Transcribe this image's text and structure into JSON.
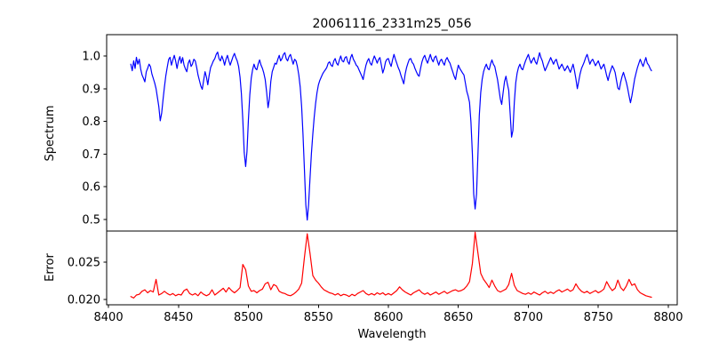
{
  "figure": {
    "title": "20061116_2331m25_056",
    "background": "#ffffff",
    "text_color": "#000000"
  },
  "x_axis": {
    "label": "Wavelength",
    "ticks": [
      {
        "v": 8400,
        "label": "8400"
      },
      {
        "v": 8450,
        "label": "8450"
      },
      {
        "v": 8500,
        "label": "8500"
      },
      {
        "v": 8550,
        "label": "8550"
      },
      {
        "v": 8600,
        "label": "8600"
      },
      {
        "v": 8650,
        "label": "8650"
      },
      {
        "v": 8700,
        "label": "8700"
      },
      {
        "v": 8750,
        "label": "8750"
      },
      {
        "v": 8800,
        "label": "8800"
      }
    ]
  },
  "chart_data": [
    {
      "type": "line",
      "name": "spectrum",
      "title": "20061116_2331m25_056",
      "ylabel": "Spectrum",
      "color": "#0000ff",
      "grid": false,
      "legend": "none",
      "xlim": [
        8398.7,
        8806.4
      ],
      "ylim": [
        0.4647,
        1.0652
      ],
      "yticks": [
        {
          "v": 0.5,
          "label": "0.5"
        },
        {
          "v": 0.6,
          "label": "0.6"
        },
        {
          "v": 0.7,
          "label": "0.7"
        },
        {
          "v": 0.8,
          "label": "0.8"
        },
        {
          "v": 0.9,
          "label": "0.9"
        },
        {
          "v": 1.0,
          "label": "1.0"
        }
      ],
      "x_start": 8416,
      "x_step": 1,
      "values": [
        0.975,
        0.955,
        0.985,
        0.962,
        0.996,
        0.975,
        0.99,
        0.96,
        0.942,
        0.932,
        0.921,
        0.952,
        0.962,
        0.975,
        0.968,
        0.945,
        0.932,
        0.918,
        0.9,
        0.872,
        0.845,
        0.802,
        0.825,
        0.868,
        0.905,
        0.94,
        0.966,
        0.99,
        0.996,
        0.972,
        0.988,
        1.002,
        0.985,
        0.962,
        0.985,
        0.998,
        0.978,
        0.995,
        0.972,
        0.96,
        0.952,
        0.978,
        0.988,
        0.968,
        0.975,
        0.99,
        0.985,
        0.965,
        0.942,
        0.925,
        0.908,
        0.898,
        0.925,
        0.952,
        0.935,
        0.912,
        0.942,
        0.965,
        0.975,
        0.985,
        0.992,
        1.005,
        1.012,
        0.992,
        0.985,
        1.0,
        0.988,
        0.972,
        0.99,
        1.002,
        0.985,
        0.972,
        0.985,
        0.998,
        1.008,
        0.995,
        0.985,
        0.968,
        0.935,
        0.885,
        0.805,
        0.705,
        0.662,
        0.708,
        0.805,
        0.882,
        0.932,
        0.958,
        0.975,
        0.962,
        0.958,
        0.975,
        0.988,
        0.972,
        0.962,
        0.948,
        0.928,
        0.89,
        0.842,
        0.868,
        0.922,
        0.952,
        0.965,
        0.978,
        0.975,
        0.99,
        1.002,
        0.985,
        0.992,
        1.005,
        1.01,
        0.992,
        0.985,
        0.998,
        1.005,
        0.99,
        0.975,
        0.99,
        0.985,
        0.968,
        0.942,
        0.905,
        0.845,
        0.762,
        0.655,
        0.545,
        0.498,
        0.545,
        0.625,
        0.702,
        0.762,
        0.812,
        0.855,
        0.888,
        0.912,
        0.925,
        0.935,
        0.945,
        0.952,
        0.958,
        0.965,
        0.978,
        0.982,
        0.972,
        0.968,
        0.985,
        0.992,
        0.978,
        0.972,
        0.988,
        1.0,
        0.985,
        0.982,
        0.995,
        0.998,
        0.982,
        0.975,
        0.995,
        1.005,
        0.99,
        0.982,
        0.972,
        0.968,
        0.958,
        0.948,
        0.938,
        0.928,
        0.952,
        0.972,
        0.985,
        0.992,
        0.978,
        0.972,
        0.988,
        1.0,
        0.99,
        0.978,
        0.99,
        0.995,
        0.972,
        0.948,
        0.962,
        0.982,
        0.99,
        0.992,
        0.978,
        0.968,
        0.988,
        1.005,
        0.99,
        0.978,
        0.965,
        0.955,
        0.94,
        0.928,
        0.915,
        0.945,
        0.965,
        0.978,
        0.99,
        0.992,
        0.98,
        0.975,
        0.962,
        0.952,
        0.942,
        0.938,
        0.962,
        0.982,
        0.995,
        1.002,
        0.988,
        0.978,
        0.992,
        1.005,
        0.99,
        0.982,
        0.995,
        1.0,
        0.985,
        0.972,
        0.985,
        0.99,
        0.98,
        0.972,
        0.988,
        0.995,
        0.985,
        0.978,
        0.965,
        0.952,
        0.938,
        0.928,
        0.952,
        0.972,
        0.962,
        0.955,
        0.948,
        0.942,
        0.918,
        0.892,
        0.878,
        0.858,
        0.798,
        0.702,
        0.578,
        0.532,
        0.578,
        0.702,
        0.818,
        0.888,
        0.928,
        0.952,
        0.965,
        0.975,
        0.962,
        0.958,
        0.975,
        0.988,
        0.975,
        0.968,
        0.948,
        0.928,
        0.898,
        0.868,
        0.852,
        0.888,
        0.922,
        0.938,
        0.915,
        0.895,
        0.825,
        0.752,
        0.772,
        0.858,
        0.918,
        0.948,
        0.965,
        0.975,
        0.962,
        0.958,
        0.972,
        0.985,
        0.995,
        1.005,
        0.99,
        0.978,
        0.988,
        0.995,
        0.982,
        0.975,
        0.992,
        1.01,
        0.995,
        0.985,
        0.968,
        0.955,
        0.965,
        0.975,
        0.985,
        0.995,
        0.985,
        0.975,
        0.985,
        0.99,
        0.975,
        0.96,
        0.968,
        0.975,
        0.965,
        0.955,
        0.962,
        0.97,
        0.96,
        0.95,
        0.962,
        0.975,
        0.955,
        0.93,
        0.9,
        0.922,
        0.945,
        0.962,
        0.972,
        0.982,
        0.995,
        1.005,
        0.99,
        0.975,
        0.985,
        0.99,
        0.98,
        0.97,
        0.978,
        0.985,
        0.972,
        0.96,
        0.968,
        0.975,
        0.958,
        0.94,
        0.925,
        0.945,
        0.958,
        0.97,
        0.962,
        0.95,
        0.925,
        0.902,
        0.897,
        0.92,
        0.938,
        0.95,
        0.935,
        0.92,
        0.9,
        0.878,
        0.857,
        0.878,
        0.905,
        0.93,
        0.948,
        0.965,
        0.978,
        0.99,
        0.978,
        0.968,
        0.982,
        0.995,
        0.978,
        0.972,
        0.962,
        0.955
      ]
    },
    {
      "type": "line",
      "name": "error",
      "ylabel": "Error",
      "color": "#ff0000",
      "grid": false,
      "legend": "none",
      "xlim": [
        8398.7,
        8806.4
      ],
      "ylim": [
        0.01929,
        0.02917
      ],
      "yticks": [
        {
          "v": 0.02,
          "label": "0.020"
        },
        {
          "v": 0.025,
          "label": "0.025"
        }
      ],
      "x_start": 8416,
      "x_step": 2,
      "values": [
        0.0204,
        0.0202,
        0.0206,
        0.0207,
        0.0211,
        0.0213,
        0.0209,
        0.0212,
        0.021,
        0.0227,
        0.0206,
        0.0208,
        0.0211,
        0.0208,
        0.0206,
        0.0208,
        0.0205,
        0.0207,
        0.0206,
        0.0212,
        0.0214,
        0.0208,
        0.0206,
        0.0208,
        0.0205,
        0.021,
        0.0207,
        0.0205,
        0.0207,
        0.0213,
        0.0206,
        0.0209,
        0.0212,
        0.0215,
        0.021,
        0.0216,
        0.0212,
        0.0209,
        0.0212,
        0.0216,
        0.0247,
        0.024,
        0.0218,
        0.0211,
        0.0212,
        0.0209,
        0.0212,
        0.0214,
        0.0221,
        0.0223,
        0.0213,
        0.022,
        0.0218,
        0.0211,
        0.0209,
        0.0208,
        0.0206,
        0.0205,
        0.0207,
        0.021,
        0.0214,
        0.0222,
        0.0256,
        0.0288,
        0.0262,
        0.0232,
        0.0226,
        0.0222,
        0.0217,
        0.0213,
        0.0211,
        0.0209,
        0.0208,
        0.0206,
        0.0208,
        0.0205,
        0.0207,
        0.0206,
        0.0204,
        0.0207,
        0.0205,
        0.0208,
        0.021,
        0.0212,
        0.0208,
        0.0206,
        0.0208,
        0.0206,
        0.0209,
        0.0207,
        0.0209,
        0.0206,
        0.0208,
        0.0206,
        0.0209,
        0.0212,
        0.0217,
        0.0213,
        0.021,
        0.0208,
        0.0206,
        0.0209,
        0.0211,
        0.0213,
        0.0209,
        0.0207,
        0.0209,
        0.0206,
        0.0208,
        0.021,
        0.0207,
        0.0209,
        0.0211,
        0.0208,
        0.021,
        0.0212,
        0.0213,
        0.0211,
        0.0212,
        0.0214,
        0.0218,
        0.0224,
        0.0248,
        0.029,
        0.0262,
        0.0235,
        0.0227,
        0.0222,
        0.0216,
        0.0226,
        0.0218,
        0.0212,
        0.021,
        0.0212,
        0.0214,
        0.022,
        0.0235,
        0.0219,
        0.0212,
        0.021,
        0.0208,
        0.0207,
        0.0209,
        0.0207,
        0.021,
        0.0208,
        0.0206,
        0.0209,
        0.0211,
        0.0208,
        0.021,
        0.0208,
        0.0211,
        0.0213,
        0.021,
        0.0212,
        0.0214,
        0.0211,
        0.0213,
        0.0221,
        0.0215,
        0.0211,
        0.0209,
        0.0211,
        0.0208,
        0.021,
        0.0212,
        0.0209,
        0.0211,
        0.0214,
        0.0224,
        0.0217,
        0.0212,
        0.0215,
        0.0226,
        0.0216,
        0.0212,
        0.0218,
        0.0227,
        0.0219,
        0.0221,
        0.0213,
        0.0209,
        0.0207,
        0.0205,
        0.0204,
        0.0203
      ]
    }
  ]
}
